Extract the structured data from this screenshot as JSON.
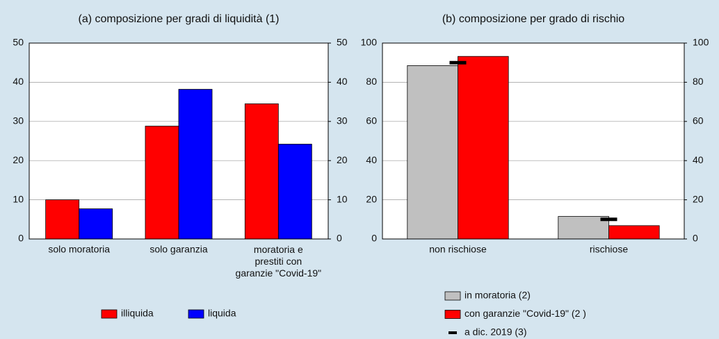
{
  "chart_data": [
    {
      "type": "bar",
      "title": "(a) composizione per gradi di liquidità (1)",
      "categories": [
        "solo moratoria",
        "solo garanzia",
        [
          "moratoria e",
          "prestiti con",
          "garanzie  \"Covid-19\""
        ]
      ],
      "series": [
        {
          "name": "illiquida",
          "color": "#ff0000",
          "values": [
            10,
            28.8,
            34.5
          ]
        },
        {
          "name": "liquida",
          "color": "#0000ff",
          "values": [
            7.7,
            38.2,
            24.2
          ]
        }
      ],
      "ylim": [
        0,
        50
      ],
      "yticks": [
        0,
        10,
        20,
        30,
        40,
        50
      ],
      "y2lim": [
        0,
        50
      ],
      "y2ticks": [
        0,
        10,
        20,
        30,
        40,
        50
      ],
      "grid": true
    },
    {
      "type": "bar",
      "title": "(b) composizione per grado di rischio",
      "categories": [
        "non rischiose",
        "rischiose"
      ],
      "series": [
        {
          "name": "in moratoria (2)",
          "color": "#c0c0c0",
          "values": [
            88.5,
            11.5
          ]
        },
        {
          "name": "con garanzie  \"Covid-19\"  (2 )",
          "color": "#ff0000",
          "values": [
            93.2,
            6.8
          ]
        },
        {
          "name": "a dic. 2019   (3)",
          "color": "#000000",
          "style": "marker",
          "values": [
            90,
            10
          ]
        }
      ],
      "ylim": [
        0,
        100
      ],
      "yticks": [
        0,
        20,
        40,
        60,
        80,
        100
      ],
      "y2lim": [
        0,
        100
      ],
      "y2ticks": [
        0,
        20,
        40,
        60,
        80,
        100
      ],
      "grid": true
    }
  ]
}
